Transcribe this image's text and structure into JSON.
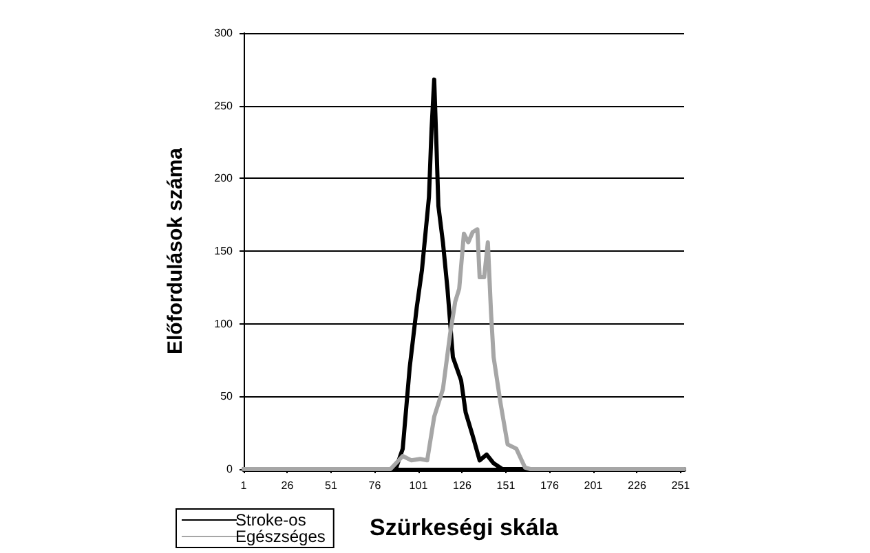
{
  "chart_data": {
    "type": "line",
    "xlabel": "Szürkeségi skála",
    "ylabel": "Előfordulások száma",
    "xlim": [
      1,
      253
    ],
    "xticks": [
      1,
      26,
      51,
      76,
      101,
      126,
      151,
      176,
      201,
      226,
      251
    ],
    "ylim": [
      0,
      300
    ],
    "yticks": [
      0,
      50,
      100,
      150,
      200,
      250,
      300
    ],
    "grid": "y",
    "legend": "bottom left",
    "marker": "none",
    "line_style": "solid",
    "series": [
      {
        "name": "Stroke-os",
        "color": "#000000",
        "x": [
          1,
          88,
          92,
          96,
          100,
          103,
          107,
          108.5,
          110,
          111.4,
          112.4,
          115,
          117.6,
          120.7,
          125.4,
          128,
          132,
          136,
          140,
          144,
          149,
          253
        ],
        "values": [
          0,
          0,
          14,
          70,
          111,
          137,
          187,
          234,
          268,
          219,
          181,
          156,
          124,
          77,
          61,
          39,
          23,
          6,
          10,
          4,
          0,
          0
        ]
      },
      {
        "name": "Egészséges",
        "color": "#a6a6a6",
        "x": [
          1,
          85,
          92,
          97,
          102,
          106,
          110,
          115,
          119,
          122,
          124.3,
          127,
          129.5,
          132,
          134.7,
          136,
          138.6,
          140.7,
          142.5,
          144,
          148,
          152,
          157,
          162,
          165,
          253
        ],
        "values": [
          0,
          0,
          9,
          6,
          7,
          6,
          36,
          55,
          92,
          115,
          124,
          162,
          156,
          163,
          165,
          132,
          132,
          156,
          108,
          77,
          45,
          17,
          14,
          1,
          0,
          0
        ]
      }
    ]
  }
}
